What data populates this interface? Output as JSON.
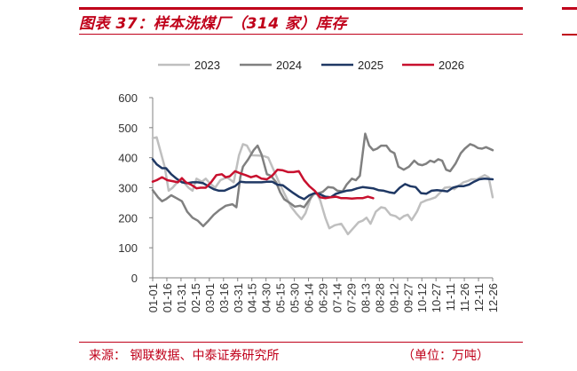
{
  "figure": {
    "title": "图表 37：样本洗煤厂（314 家）库存",
    "source": "来源：  钢联数据、中泰证券研究所",
    "unit": "（单位：万吨）"
  },
  "colors": {
    "accent": "#c0001a",
    "s2023": "#bfbfbf",
    "s2024": "#808080",
    "s2025": "#1f3864",
    "s2026": "#c8102e"
  },
  "chart_data": {
    "type": "line",
    "title": "",
    "xlabel": "",
    "ylabel": "",
    "ylim": [
      0,
      600
    ],
    "yticks": [
      0,
      100,
      200,
      300,
      400,
      500,
      600
    ],
    "grid": false,
    "legend_position": "top",
    "x_ticks": [
      "01-01",
      "01-16",
      "01-31",
      "02-15",
      "03-01",
      "03-16",
      "03-31",
      "04-15",
      "04-30",
      "05-15",
      "05-30",
      "06-14",
      "06-29",
      "07-14",
      "07-29",
      "08-13",
      "08-28",
      "09-12",
      "09-27",
      "10-12",
      "10-27",
      "11-11",
      "11-26",
      "12-11",
      "12-26"
    ],
    "series": [
      {
        "name": "2023",
        "color": "#bfbfbf",
        "points": [
          [
            0,
            465
          ],
          [
            3,
            468
          ],
          [
            9,
            370
          ],
          [
            12,
            290
          ],
          [
            15,
            300
          ],
          [
            20,
            325
          ],
          [
            24,
            315
          ],
          [
            27,
            300
          ],
          [
            30,
            290
          ],
          [
            33,
            330
          ],
          [
            37,
            320
          ],
          [
            40,
            330
          ],
          [
            43,
            315
          ],
          [
            47,
            300
          ],
          [
            51,
            325
          ],
          [
            56,
            335
          ],
          [
            61,
            318
          ],
          [
            65,
            408
          ],
          [
            68,
            445
          ],
          [
            71,
            440
          ],
          [
            75,
            408
          ],
          [
            80,
            407
          ],
          [
            84,
            405
          ],
          [
            87,
            400
          ],
          [
            90,
            370
          ],
          [
            95,
            320
          ],
          [
            99,
            282
          ],
          [
            104,
            238
          ],
          [
            108,
            215
          ],
          [
            112,
            195
          ],
          [
            115,
            215
          ],
          [
            119,
            265
          ],
          [
            123,
            285
          ],
          [
            126,
            260
          ],
          [
            130,
            200
          ],
          [
            133,
            165
          ],
          [
            137,
            175
          ],
          [
            142,
            180
          ],
          [
            145,
            160
          ],
          [
            147,
            145
          ],
          [
            151,
            165
          ],
          [
            155,
            185
          ],
          [
            158,
            190
          ],
          [
            161,
            200
          ],
          [
            164,
            180
          ],
          [
            168,
            220
          ],
          [
            172,
            235
          ],
          [
            175,
            232
          ],
          [
            179,
            210
          ],
          [
            183,
            205
          ],
          [
            186,
            195
          ],
          [
            189,
            205
          ],
          [
            192,
            210
          ],
          [
            195,
            192
          ],
          [
            199,
            220
          ],
          [
            202,
            250
          ],
          [
            206,
            258
          ],
          [
            209,
            262
          ],
          [
            213,
            268
          ],
          [
            216,
            282
          ],
          [
            220,
            300
          ],
          [
            224,
            302
          ],
          [
            227,
            295
          ],
          [
            230,
            305
          ],
          [
            234,
            318
          ],
          [
            237,
            322
          ],
          [
            240,
            328
          ],
          [
            244,
            328
          ],
          [
            247,
            335
          ],
          [
            250,
            342
          ],
          [
            253,
            335
          ],
          [
            256,
            268
          ]
        ]
      },
      {
        "name": "2024",
        "color": "#808080",
        "points": [
          [
            0,
            292
          ],
          [
            4,
            268
          ],
          [
            7,
            255
          ],
          [
            10,
            262
          ],
          [
            14,
            275
          ],
          [
            18,
            265
          ],
          [
            22,
            255
          ],
          [
            26,
            220
          ],
          [
            30,
            200
          ],
          [
            34,
            190
          ],
          [
            38,
            172
          ],
          [
            42,
            190
          ],
          [
            46,
            210
          ],
          [
            50,
            225
          ],
          [
            55,
            240
          ],
          [
            60,
            245
          ],
          [
            63,
            235
          ],
          [
            66,
            335
          ],
          [
            68,
            370
          ],
          [
            72,
            395
          ],
          [
            76,
            425
          ],
          [
            79,
            440
          ],
          [
            82,
            410
          ],
          [
            86,
            345
          ],
          [
            89,
            340
          ],
          [
            93,
            318
          ],
          [
            96,
            285
          ],
          [
            99,
            262
          ],
          [
            103,
            250
          ],
          [
            107,
            237
          ],
          [
            111,
            240
          ],
          [
            114,
            235
          ],
          [
            118,
            260
          ],
          [
            121,
            280
          ],
          [
            125,
            282
          ],
          [
            128,
            286
          ],
          [
            132,
            302
          ],
          [
            136,
            300
          ],
          [
            139,
            290
          ],
          [
            143,
            288
          ],
          [
            146,
            310
          ],
          [
            150,
            330
          ],
          [
            153,
            325
          ],
          [
            156,
            340
          ],
          [
            160,
            480
          ],
          [
            163,
            440
          ],
          [
            166,
            425
          ],
          [
            169,
            430
          ],
          [
            172,
            440
          ],
          [
            176,
            440
          ],
          [
            179,
            422
          ],
          [
            182,
            415
          ],
          [
            185,
            370
          ],
          [
            189,
            360
          ],
          [
            193,
            370
          ],
          [
            197,
            390
          ],
          [
            200,
            378
          ],
          [
            203,
            375
          ],
          [
            206,
            380
          ],
          [
            209,
            390
          ],
          [
            212,
            385
          ],
          [
            215,
            395
          ],
          [
            218,
            390
          ],
          [
            221,
            360
          ],
          [
            224,
            355
          ],
          [
            228,
            380
          ],
          [
            232,
            415
          ],
          [
            235,
            430
          ],
          [
            239,
            445
          ],
          [
            242,
            440
          ],
          [
            245,
            432
          ],
          [
            248,
            430
          ],
          [
            251,
            435
          ],
          [
            256,
            425
          ]
        ]
      },
      {
        "name": "2025",
        "color": "#1f3864",
        "points": [
          [
            0,
            395
          ],
          [
            3,
            378
          ],
          [
            7,
            365
          ],
          [
            10,
            365
          ],
          [
            14,
            345
          ],
          [
            18,
            330
          ],
          [
            22,
            318
          ],
          [
            26,
            315
          ],
          [
            30,
            318
          ],
          [
            34,
            318
          ],
          [
            38,
            315
          ],
          [
            42,
            305
          ],
          [
            46,
            295
          ],
          [
            50,
            290
          ],
          [
            54,
            290
          ],
          [
            58,
            298
          ],
          [
            62,
            305
          ],
          [
            66,
            320
          ],
          [
            70,
            318
          ],
          [
            74,
            318
          ],
          [
            78,
            318
          ],
          [
            82,
            318
          ],
          [
            86,
            320
          ],
          [
            90,
            320
          ],
          [
            94,
            310
          ],
          [
            98,
            308
          ],
          [
            102,
            295
          ],
          [
            106,
            282
          ],
          [
            110,
            270
          ],
          [
            114,
            262
          ],
          [
            118,
            275
          ],
          [
            122,
            282
          ],
          [
            126,
            278
          ],
          [
            130,
            270
          ],
          [
            134,
            268
          ],
          [
            138,
            280
          ],
          [
            142,
            285
          ],
          [
            146,
            290
          ],
          [
            150,
            292
          ],
          [
            154,
            298
          ],
          [
            158,
            302
          ],
          [
            162,
            300
          ],
          [
            166,
            298
          ],
          [
            170,
            292
          ],
          [
            174,
            290
          ],
          [
            178,
            285
          ],
          [
            182,
            282
          ],
          [
            186,
            300
          ],
          [
            190,
            312
          ],
          [
            194,
            305
          ],
          [
            198,
            302
          ],
          [
            202,
            282
          ],
          [
            206,
            280
          ],
          [
            210,
            290
          ],
          [
            214,
            292
          ],
          [
            218,
            290
          ],
          [
            222,
            288
          ],
          [
            226,
            300
          ],
          [
            230,
            305
          ],
          [
            234,
            305
          ],
          [
            238,
            310
          ],
          [
            242,
            320
          ],
          [
            246,
            328
          ],
          [
            250,
            330
          ],
          [
            256,
            328
          ]
        ]
      },
      {
        "name": "2026",
        "color": "#c8102e",
        "points": [
          [
            0,
            320
          ],
          [
            3,
            325
          ],
          [
            7,
            335
          ],
          [
            11,
            325
          ],
          [
            15,
            322
          ],
          [
            19,
            318
          ],
          [
            22,
            332
          ],
          [
            25,
            318
          ],
          [
            29,
            310
          ],
          [
            33,
            298
          ],
          [
            36,
            300
          ],
          [
            40,
            300
          ],
          [
            44,
            318
          ],
          [
            48,
            342
          ],
          [
            52,
            345
          ],
          [
            55,
            335
          ],
          [
            58,
            338
          ],
          [
            62,
            355
          ],
          [
            66,
            348
          ],
          [
            70,
            342
          ],
          [
            74,
            335
          ],
          [
            78,
            340
          ],
          [
            82,
            330
          ],
          [
            86,
            328
          ],
          [
            90,
            340
          ],
          [
            94,
            360
          ],
          [
            98,
            358
          ],
          [
            102,
            352
          ],
          [
            106,
            352
          ],
          [
            110,
            355
          ],
          [
            114,
            325
          ],
          [
            118,
            305
          ],
          [
            122,
            290
          ],
          [
            126,
            268
          ],
          [
            130,
            265
          ],
          [
            134,
            268
          ],
          [
            138,
            270
          ],
          [
            142,
            265
          ],
          [
            146,
            265
          ],
          [
            150,
            264
          ],
          [
            154,
            265
          ],
          [
            158,
            265
          ],
          [
            162,
            270
          ],
          [
            166,
            265
          ]
        ]
      }
    ],
    "x_domain": [
      0,
      256
    ]
  }
}
